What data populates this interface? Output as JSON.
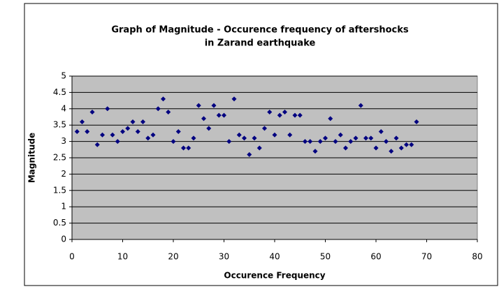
{
  "chart_data": {
    "type": "scatter",
    "title": [
      "Graph of Magnitude - Occurence frequency of aftershocks",
      "in Zarand earthquake"
    ],
    "xlabel": "Occurence Frequency",
    "ylabel": "Magnitude",
    "x": [
      1,
      2,
      3,
      4,
      5,
      6,
      7,
      8,
      9,
      10,
      11,
      12,
      13,
      14,
      15,
      16,
      17,
      18,
      19,
      20,
      21,
      22,
      23,
      24,
      25,
      26,
      27,
      28,
      29,
      30,
      31,
      32,
      33,
      34,
      35,
      36,
      37,
      38,
      39,
      40,
      41,
      42,
      43,
      44,
      45,
      46,
      47,
      48,
      49,
      50,
      51,
      52,
      53,
      54,
      55,
      56,
      57,
      58,
      59,
      60,
      61,
      62,
      63,
      64,
      65,
      66,
      67,
      68
    ],
    "values": [
      3.3,
      3.6,
      3.3,
      3.9,
      2.9,
      3.2,
      4.0,
      3.2,
      3.0,
      3.3,
      3.4,
      3.6,
      3.3,
      3.6,
      3.1,
      3.2,
      4.0,
      4.3,
      3.9,
      3.0,
      3.3,
      2.8,
      2.8,
      3.1,
      4.1,
      3.7,
      3.4,
      4.1,
      3.8,
      3.8,
      3.0,
      4.3,
      3.2,
      3.1,
      2.6,
      3.1,
      2.8,
      3.4,
      3.9,
      3.2,
      3.8,
      3.9,
      3.2,
      3.8,
      3.8,
      3.0,
      3.0,
      2.7,
      3.0,
      3.1,
      3.7,
      3.0,
      3.2,
      2.8,
      3.0,
      3.1,
      4.1,
      3.1,
      3.1,
      2.8,
      3.3,
      3.0,
      2.7,
      3.1,
      2.8,
      2.9,
      2.9,
      3.6
    ],
    "color": "#000080",
    "plot_background": "#c0c0c0",
    "grid": true,
    "xlim": [
      0,
      80
    ],
    "xticks": [
      0,
      10,
      20,
      30,
      40,
      50,
      60,
      70,
      80
    ],
    "ylim": [
      0,
      5
    ],
    "yticks": [
      0,
      0.5,
      1,
      1.5,
      2,
      2.5,
      3,
      3.5,
      4,
      4.5,
      5
    ]
  }
}
